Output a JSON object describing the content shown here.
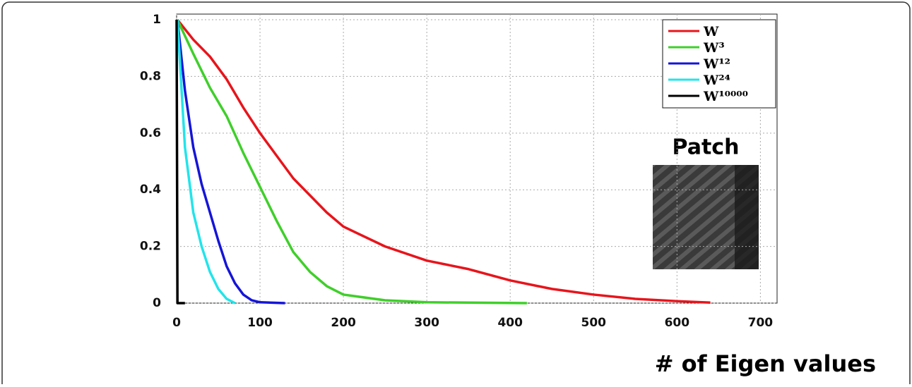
{
  "chart_data": {
    "type": "line",
    "xlabel": "# of Eigen values",
    "annotation": "Patch",
    "xlim": [
      0,
      720
    ],
    "ylim": [
      0,
      1.02
    ],
    "xticks": [
      0,
      100,
      200,
      300,
      400,
      500,
      600,
      700
    ],
    "yticks": [
      0,
      0.2,
      0.4,
      0.6,
      0.8,
      1
    ],
    "grid": true,
    "legend": "upper right",
    "series": [
      {
        "name": "W",
        "color": "#e8141b",
        "x": [
          1,
          20,
          40,
          60,
          80,
          100,
          120,
          140,
          160,
          180,
          200,
          250,
          300,
          350,
          400,
          450,
          500,
          550,
          600,
          640
        ],
        "values": [
          1,
          0.93,
          0.87,
          0.79,
          0.69,
          0.6,
          0.52,
          0.44,
          0.38,
          0.32,
          0.27,
          0.2,
          0.15,
          0.12,
          0.08,
          0.05,
          0.03,
          0.015,
          0.007,
          0.002
        ]
      },
      {
        "name": "W³",
        "color": "#3fcf2a",
        "x": [
          1,
          20,
          40,
          60,
          80,
          100,
          120,
          140,
          160,
          180,
          200,
          250,
          300,
          420
        ],
        "values": [
          1,
          0.88,
          0.76,
          0.66,
          0.53,
          0.41,
          0.29,
          0.18,
          0.11,
          0.06,
          0.03,
          0.01,
          0.003,
          0
        ]
      },
      {
        "name": "W¹²",
        "color": "#1515d8",
        "x": [
          1,
          10,
          20,
          30,
          40,
          50,
          60,
          70,
          80,
          90,
          100,
          130
        ],
        "values": [
          1,
          0.75,
          0.55,
          0.42,
          0.32,
          0.22,
          0.13,
          0.07,
          0.03,
          0.01,
          0.003,
          0
        ]
      },
      {
        "name": "W²⁴",
        "color": "#22e4ea",
        "x": [
          1,
          10,
          20,
          30,
          40,
          50,
          60,
          70
        ],
        "values": [
          1,
          0.55,
          0.32,
          0.2,
          0.11,
          0.05,
          0.015,
          0
        ]
      },
      {
        "name": "W¹⁰⁰⁰⁰",
        "color": "#000000",
        "x": [
          0,
          1,
          10
        ],
        "values": [
          1,
          0,
          0
        ]
      }
    ]
  }
}
